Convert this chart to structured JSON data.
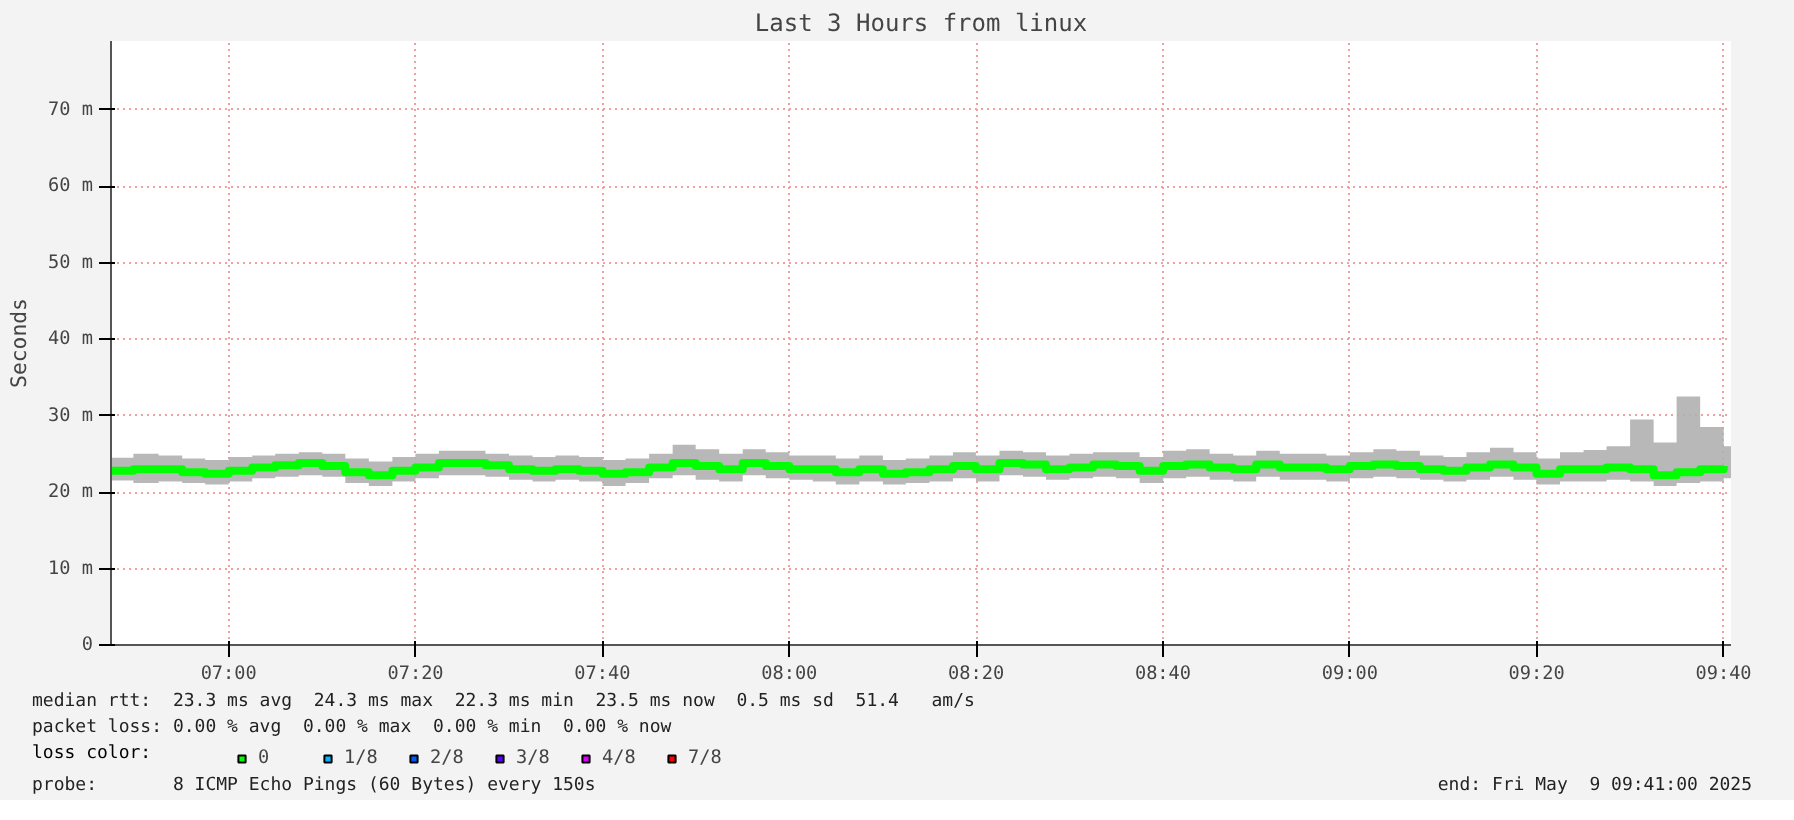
{
  "chart_data": {
    "type": "line",
    "title": "Last 3 Hours from linux",
    "ylabel": "Seconds",
    "legend_title": "loss color:",
    "legend": "bottom",
    "grid": true,
    "line_style": "solid",
    "marker": "none",
    "xlim": [
      6.79,
      9.68
    ],
    "ylim": [
      0,
      79
    ],
    "xticks": [
      {
        "value": 7,
        "label": "07:00"
      },
      {
        "value": 7.3333,
        "label": "07:20"
      },
      {
        "value": 7.6667,
        "label": "07:40"
      },
      {
        "value": 8,
        "label": "08:00"
      },
      {
        "value": 8.3333,
        "label": "08:20"
      },
      {
        "value": 8.6667,
        "label": "08:40"
      },
      {
        "value": 9,
        "label": "09:00"
      },
      {
        "value": 9.3333,
        "label": "09:20"
      },
      {
        "value": 9.6667,
        "label": "09:40"
      }
    ],
    "yticks": [
      0,
      {
        "value": 10,
        "label": "10 m"
      },
      {
        "value": 20,
        "label": "20 m"
      },
      {
        "value": 30,
        "label": "30 m"
      },
      {
        "value": 40,
        "label": "40 m"
      },
      {
        "value": 50,
        "label": "50 m"
      },
      {
        "value": 60,
        "label": "60 m"
      },
      {
        "value": 70,
        "label": "70 m"
      }
    ],
    "x": [
      6.79,
      6.83,
      6.875,
      6.917,
      6.958,
      7.0,
      7.042,
      7.083,
      7.125,
      7.167,
      7.208,
      7.25,
      7.292,
      7.333,
      7.375,
      7.417,
      7.458,
      7.5,
      7.542,
      7.583,
      7.625,
      7.667,
      7.708,
      7.75,
      7.792,
      7.833,
      7.875,
      7.917,
      7.958,
      8.0,
      8.042,
      8.083,
      8.125,
      8.167,
      8.208,
      8.25,
      8.292,
      8.333,
      8.375,
      8.417,
      8.458,
      8.5,
      8.542,
      8.583,
      8.625,
      8.667,
      8.708,
      8.75,
      8.792,
      8.833,
      8.875,
      8.917,
      8.958,
      9.0,
      9.042,
      9.083,
      9.125,
      9.167,
      9.208,
      9.25,
      9.292,
      9.333,
      9.375,
      9.417,
      9.458,
      9.5,
      9.542,
      9.583,
      9.625,
      9.667
    ],
    "series": [
      {
        "name": "0",
        "color": "#00ff00",
        "values": [
          22.8,
          23.0,
          23.0,
          22.6,
          22.4,
          22.8,
          23.2,
          23.5,
          23.8,
          23.4,
          22.6,
          22.2,
          22.8,
          23.2,
          23.8,
          23.8,
          23.5,
          23.0,
          22.8,
          23.0,
          22.8,
          22.4,
          22.6,
          23.2,
          23.8,
          23.4,
          23.0,
          23.8,
          23.4,
          23.0,
          23.0,
          22.6,
          23.0,
          22.4,
          22.6,
          23.0,
          23.4,
          23.0,
          23.8,
          23.6,
          23.0,
          23.2,
          23.6,
          23.4,
          22.8,
          23.4,
          23.6,
          23.2,
          23.0,
          23.6,
          23.2,
          23.2,
          23.0,
          23.4,
          23.6,
          23.4,
          23.0,
          22.8,
          23.2,
          23.6,
          23.2,
          22.4,
          23.0,
          23.0,
          23.2,
          23.0,
          22.2,
          22.6,
          23.0,
          23.4
        ],
        "lower": [
          21.5,
          21.2,
          21.4,
          21.2,
          21.0,
          21.4,
          21.8,
          22.0,
          22.2,
          22.0,
          21.2,
          20.8,
          21.4,
          21.8,
          22.2,
          22.2,
          22.0,
          21.6,
          21.4,
          21.6,
          21.4,
          20.8,
          21.2,
          21.8,
          22.2,
          21.6,
          21.4,
          22.2,
          21.8,
          21.6,
          21.4,
          21.0,
          21.4,
          21.0,
          21.2,
          21.4,
          21.8,
          21.4,
          22.2,
          22.0,
          21.6,
          21.8,
          22.0,
          21.8,
          21.2,
          21.8,
          22.0,
          21.6,
          21.4,
          22.0,
          21.6,
          21.6,
          21.4,
          21.8,
          22.0,
          21.8,
          21.6,
          21.4,
          21.6,
          22.0,
          21.6,
          21.0,
          21.4,
          21.4,
          21.6,
          21.4,
          20.8,
          21.2,
          21.4,
          21.8
        ],
        "upper": [
          24.5,
          25.0,
          24.8,
          24.4,
          24.2,
          24.6,
          24.8,
          25.0,
          25.2,
          25.0,
          24.4,
          24.0,
          24.6,
          25.0,
          25.4,
          25.4,
          25.0,
          24.8,
          24.6,
          24.8,
          24.6,
          24.2,
          24.4,
          25.0,
          26.2,
          25.6,
          25.0,
          25.6,
          25.2,
          24.8,
          24.8,
          24.4,
          24.8,
          24.2,
          24.4,
          24.8,
          25.2,
          24.8,
          25.4,
          25.2,
          24.8,
          25.0,
          25.2,
          25.2,
          24.6,
          25.4,
          25.6,
          25.0,
          24.8,
          25.4,
          25.0,
          25.0,
          24.8,
          25.2,
          25.6,
          25.4,
          24.8,
          24.6,
          25.2,
          25.8,
          25.2,
          24.4,
          25.2,
          25.5,
          26.0,
          29.5,
          26.5,
          32.5,
          28.5,
          26.0
        ]
      },
      {
        "name": "1/8",
        "color": "#00b8ff",
        "values": [
          null,
          null,
          null,
          null,
          null,
          null,
          null,
          null,
          null,
          null,
          null,
          null,
          null,
          null,
          null,
          null,
          null,
          null,
          null,
          null,
          null,
          null,
          null,
          null,
          null,
          null,
          null,
          null,
          null,
          null,
          null,
          null,
          null,
          null,
          null,
          null,
          null,
          null,
          null,
          null,
          null,
          null,
          null,
          null,
          null,
          null,
          null,
          null,
          null,
          null,
          null,
          null,
          null,
          null,
          null,
          null,
          null,
          null,
          null,
          null,
          null,
          null,
          null,
          null,
          null,
          null,
          null,
          null,
          null,
          null
        ]
      },
      {
        "name": "2/8",
        "color": "#0059ff",
        "values": [
          null,
          null,
          null,
          null,
          null,
          null,
          null,
          null,
          null,
          null,
          null,
          null,
          null,
          null,
          null,
          null,
          null,
          null,
          null,
          null,
          null,
          null,
          null,
          null,
          null,
          null,
          null,
          null,
          null,
          null,
          null,
          null,
          null,
          null,
          null,
          null,
          null,
          null,
          null,
          null,
          null,
          null,
          null,
          null,
          null,
          null,
          null,
          null,
          null,
          null,
          null,
          null,
          null,
          null,
          null,
          null,
          null,
          null,
          null,
          null,
          null,
          null,
          null,
          null,
          null,
          null,
          null,
          null,
          null,
          null
        ]
      },
      {
        "name": "3/8",
        "color": "#5e00ff",
        "values": [
          null,
          null,
          null,
          null,
          null,
          null,
          null,
          null,
          null,
          null,
          null,
          null,
          null,
          null,
          null,
          null,
          null,
          null,
          null,
          null,
          null,
          null,
          null,
          null,
          null,
          null,
          null,
          null,
          null,
          null,
          null,
          null,
          null,
          null,
          null,
          null,
          null,
          null,
          null,
          null,
          null,
          null,
          null,
          null,
          null,
          null,
          null,
          null,
          null,
          null,
          null,
          null,
          null,
          null,
          null,
          null,
          null,
          null,
          null,
          null,
          null,
          null,
          null,
          null,
          null,
          null,
          null,
          null,
          null,
          null
        ]
      },
      {
        "name": "4/8",
        "color": "#dd00ff",
        "values": [
          null,
          null,
          null,
          null,
          null,
          null,
          null,
          null,
          null,
          null,
          null,
          null,
          null,
          null,
          null,
          null,
          null,
          null,
          null,
          null,
          null,
          null,
          null,
          null,
          null,
          null,
          null,
          null,
          null,
          null,
          null,
          null,
          null,
          null,
          null,
          null,
          null,
          null,
          null,
          null,
          null,
          null,
          null,
          null,
          null,
          null,
          null,
          null,
          null,
          null,
          null,
          null,
          null,
          null,
          null,
          null,
          null,
          null,
          null,
          null,
          null,
          null,
          null,
          null,
          null,
          null,
          null,
          null,
          null,
          null
        ]
      },
      {
        "name": "7/8",
        "color": "#ff0000",
        "values": [
          null,
          null,
          null,
          null,
          null,
          null,
          null,
          null,
          null,
          null,
          null,
          null,
          null,
          null,
          null,
          null,
          null,
          null,
          null,
          null,
          null,
          null,
          null,
          null,
          null,
          null,
          null,
          null,
          null,
          null,
          null,
          null,
          null,
          null,
          null,
          null,
          null,
          null,
          null,
          null,
          null,
          null,
          null,
          null,
          null,
          null,
          null,
          null,
          null,
          null,
          null,
          null,
          null,
          null,
          null,
          null,
          null,
          null,
          null,
          null,
          null,
          null,
          null,
          null,
          null,
          null,
          null,
          null,
          null,
          null
        ]
      }
    ],
    "annotations": [
      "median rtt:  23.3 ms avg  24.3 ms max  22.3 ms min  23.5 ms now  0.5 ms sd  51.4   am/s",
      "packet loss: 0.00 % avg  0.00 % max  0.00 % min  0.00 % now",
      "probe:       8 ICMP Echo Pings (60 Bytes) every 150s",
      "end: Fri May  9 09:41:00 2025"
    ]
  }
}
